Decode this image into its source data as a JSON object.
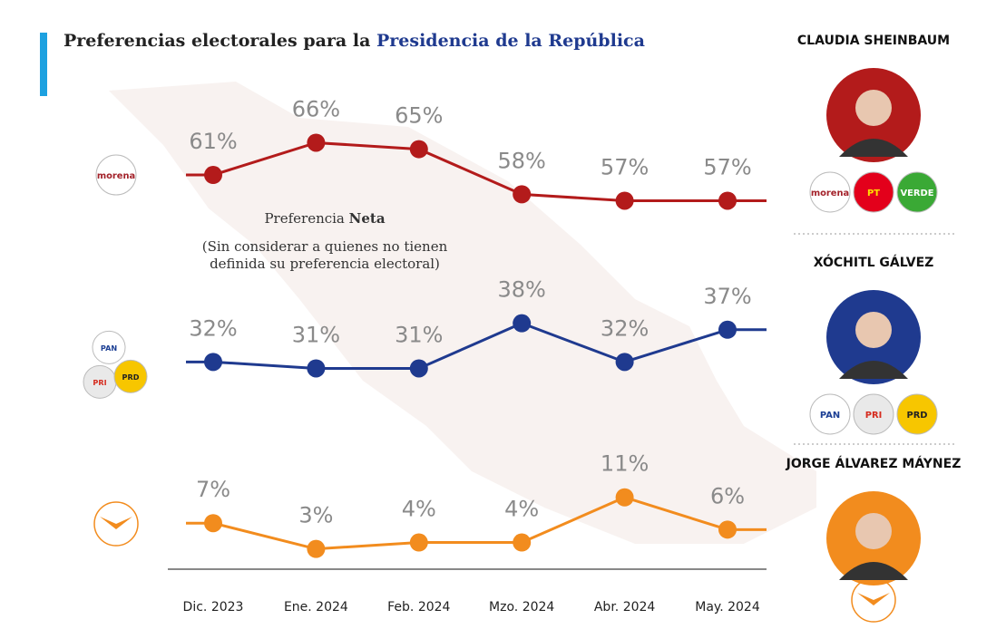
{
  "chart_data": {
    "type": "line",
    "title": "Preferencias electorales para la ",
    "title_highlight": "Presidencia de la República",
    "annotation_title": "Preferencia ",
    "annotation_title_bold": "Neta",
    "annotation_note_lines": [
      "(Sin considerar a quienes no tienen",
      "definida su preferencia electoral)"
    ],
    "categories": [
      "Dic. 2023",
      "Ene. 2024",
      "Feb. 2024",
      "Mzo. 2024",
      "Abr. 2024",
      "May. 2024"
    ],
    "ylim": [
      0,
      70
    ],
    "series": [
      {
        "color": "#b31b1b",
        "values": [
          61,
          66,
          65,
          58,
          57,
          57
        ],
        "value_labels": [
          "61%",
          "66%",
          "65%",
          "58%",
          "57%",
          "57%"
        ],
        "logos": [
          {
            "text": "morena",
            "color": "#ffffff",
            "text_color": "#a3222a"
          }
        ]
      },
      {
        "color": "#1f3a8f",
        "values": [
          32,
          31,
          31,
          38,
          32,
          37
        ],
        "value_labels": [
          "32%",
          "31%",
          "31%",
          "38%",
          "32%",
          "37%"
        ],
        "logos": [
          {
            "text": "PAN",
            "color": "#ffffff",
            "text_color": "#1c3f94"
          },
          {
            "text": "PRI",
            "color": "#e9e9e9",
            "text_color": "#d52b1e"
          },
          {
            "text": "PRD",
            "color": "#f7c600",
            "text_color": "#222222"
          }
        ]
      },
      {
        "color": "#f28c1e",
        "values": [
          7,
          3,
          4,
          4,
          11,
          6
        ],
        "value_labels": [
          "7%",
          "3%",
          "4%",
          "4%",
          "11%",
          "6%"
        ]
      }
    ],
    "candidates": [
      {
        "name": "CLAUDIA SHEINBAUM",
        "color": "#b31b1b",
        "logos": [
          {
            "text": "morena",
            "color": "#ffffff",
            "text_color": "#a3222a"
          },
          {
            "text": "PT",
            "color": "#e3001b",
            "text_color": "#ffe000"
          },
          {
            "text": "VERDE",
            "color": "#3aa935",
            "text_color": "#ffffff"
          }
        ]
      },
      {
        "name": "XÓCHITL GÁLVEZ",
        "color": "#1f3a8f",
        "logos": [
          {
            "text": "PAN",
            "color": "#ffffff",
            "text_color": "#1c3f94"
          },
          {
            "text": "PRI",
            "color": "#e9e9e9",
            "text_color": "#d52b1e"
          },
          {
            "text": "PRD",
            "color": "#f7c600",
            "text_color": "#222222"
          }
        ]
      },
      {
        "name": "JORGE ÁLVAREZ MÁYNEZ",
        "color": "#f28c1e"
      }
    ]
  }
}
